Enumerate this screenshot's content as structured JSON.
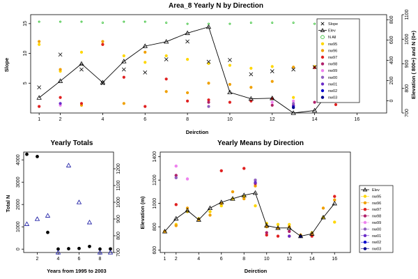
{
  "chart_data": [
    {
      "id": "top",
      "type": "scatter",
      "title": "Area_8 Yearly N by Direction",
      "xlabel": "Deirction",
      "ylabel": "Slope",
      "ylabel_right": "Elevation ( 800+) and N (0+)",
      "xlim": [
        0.6,
        17.4
      ],
      "ylim": [
        0,
        16.5
      ],
      "x_ticks": [
        1,
        2,
        4,
        6,
        8,
        10,
        12,
        14,
        16
      ],
      "y_ticks": [
        5,
        10,
        15
      ],
      "right_axis_elev": {
        "ticks": [
          700,
          800,
          900,
          1000,
          1100
        ],
        "range": [
          700,
          1100
        ]
      },
      "right_axis_n": {
        "ticks": [
          0,
          200,
          400,
          600,
          800
        ],
        "range": [
          -120,
          850
        ]
      },
      "legend_position": "top-right",
      "legend": [
        "Slope",
        "Elev",
        "N All",
        "nw95",
        "nw96",
        "nw97",
        "nw98",
        "nw99",
        "nw00",
        "nw01",
        "nw02",
        "nw03"
      ],
      "slope": {
        "x": [
          1,
          2,
          3,
          4,
          5,
          6,
          7,
          8,
          9,
          10,
          11,
          12,
          13,
          14,
          15,
          16
        ],
        "y": [
          4.3,
          9.8,
          7.3,
          5.0,
          7.3,
          6.8,
          9.0,
          12.0,
          8.6,
          8.9,
          6.5,
          7.0,
          7.3,
          7.7,
          11.0,
          8.3
        ]
      },
      "elev": {
        "x": [
          1,
          2,
          3,
          4,
          5,
          6,
          7,
          8,
          9,
          10,
          11,
          12,
          13,
          14,
          15,
          16
        ],
        "y": [
          762,
          830,
          900,
          824,
          910,
          972,
          990,
          1025,
          1050,
          784,
          758,
          760,
          700,
          710,
          822,
          933
        ]
      },
      "n_all": {
        "x": [
          1,
          2,
          3,
          4,
          5,
          6,
          7,
          8,
          9,
          10,
          11,
          12,
          13,
          14,
          15,
          16
        ],
        "y": [
          780,
          780,
          780,
          770,
          780,
          780,
          770,
          760,
          760,
          760,
          770,
          770,
          770,
          760,
          780,
          770
        ]
      },
      "yearly_points": [
        {
          "name": "nw95",
          "color": "#ffd700",
          "x": [
            1,
            2,
            3,
            4,
            5,
            6,
            7,
            8,
            9,
            10,
            11,
            12,
            13,
            14,
            15,
            16
          ],
          "y": [
            11.5,
            7.0,
            10.2,
            11.5,
            9.6,
            8.5,
            9.6,
            9.0,
            8.3,
            8.0,
            7.5,
            7.8,
            2.6,
            7.8,
            5.4,
            5.7
          ]
        },
        {
          "name": "nw96",
          "color": "#f0a000",
          "x": [
            1,
            2,
            3,
            4,
            5,
            6,
            7,
            8,
            9,
            10,
            11,
            12,
            13,
            14,
            15,
            16
          ],
          "y": [
            12.0,
            7.3,
            1.3,
            12.0,
            1.6,
            10.2,
            3.6,
            3.4,
            5.0,
            4.8,
            4.3,
            5.3,
            7.7,
            7.7,
            7.5,
            6.3
          ]
        },
        {
          "name": "nw97",
          "color": "#e02020",
          "x": [
            1,
            2,
            3,
            4,
            5,
            6,
            7,
            8,
            9,
            10,
            11,
            12,
            13,
            14,
            15,
            16
          ],
          "y": [
            1.1,
            2.6,
            1.6,
            11.5,
            6.0,
            1.1,
            5.7,
            2.0,
            2.2,
            1.8,
            2.0,
            2.4,
            1.3,
            7.6,
            1.4,
            4.0
          ]
        },
        {
          "name": "nw98",
          "color": "#b0206a",
          "x": [
            9,
            12,
            14
          ],
          "y": [
            1.8,
            1.3,
            1.8
          ]
        },
        {
          "name": "nw99",
          "color": "#ee82ee",
          "x": [
            2,
            12,
            13
          ],
          "y": [
            1.3,
            1.8,
            2.0
          ]
        },
        {
          "name": "nw00",
          "color": "#9060c0",
          "x": [
            9,
            13
          ],
          "y": [
            1.1,
            1.6
          ]
        },
        {
          "name": "nw01",
          "color": "#6a2cc8",
          "x": [
            2,
            13
          ],
          "y": [
            1.6,
            1.2
          ]
        },
        {
          "name": "nw02",
          "color": "#0000cd",
          "x": [
            13
          ],
          "y": [
            1.0
          ]
        },
        {
          "name": "nw03",
          "color": "#00008b",
          "x": [
            13
          ],
          "y": [
            0.9
          ]
        }
      ]
    },
    {
      "id": "bottom-left",
      "type": "scatter",
      "title": "Yearly Totals",
      "xlabel": "Years from 1995 to 2003",
      "ylabel": "Total N",
      "xlim": [
        0.7,
        9.3
      ],
      "ylim_left": [
        -150,
        4350
      ],
      "ylim_right": [
        700,
        1300
      ],
      "x_ticks": [
        2,
        4,
        6,
        8
      ],
      "y_ticks": [
        0,
        1000,
        2000,
        3000,
        4000
      ],
      "y_ticks_right": [
        700,
        800,
        900,
        1000,
        1100,
        1200
      ],
      "totals": {
        "x": [
          1,
          2,
          3,
          4,
          5,
          6,
          7,
          8,
          9
        ],
        "y": [
          4250,
          4150,
          750,
          5,
          20,
          30,
          120,
          5,
          10
        ]
      },
      "elevation": {
        "x": [
          1,
          2,
          3,
          4,
          5,
          6,
          7,
          8,
          9
        ],
        "y": [
          870,
          900,
          920,
          700,
          1220,
          1000,
          880,
          700,
          700
        ]
      }
    },
    {
      "id": "bottom-right",
      "type": "scatter",
      "title": "Yearly Means by Direction",
      "xlabel": "Deirction",
      "ylabel": "Elevation (m)",
      "xlim": [
        0.6,
        17.4
      ],
      "ylim": [
        580,
        1440
      ],
      "x_ticks": [
        1,
        2,
        4,
        6,
        8,
        10,
        12,
        14,
        16
      ],
      "y_ticks": [
        600,
        800,
        1000,
        1200,
        1400
      ],
      "legend_position": "bottom-right",
      "legend": [
        "Elev",
        "nw95",
        "nw96",
        "nw97",
        "nw98",
        "nw99",
        "nw00",
        "nw01",
        "nw02",
        "nw03"
      ],
      "elev": {
        "x": [
          1,
          2,
          3,
          4,
          5,
          6,
          7,
          8,
          9,
          10,
          11,
          12,
          13,
          14,
          15,
          16
        ],
        "y": [
          760,
          870,
          940,
          860,
          960,
          1010,
          1040,
          1070,
          1090,
          810,
          790,
          790,
          720,
          740,
          880,
          1000
        ]
      },
      "yearly_points": [
        {
          "name": "nw95",
          "color": "#ffd700",
          "x": [
            1,
            2,
            3,
            4,
            5,
            6,
            7,
            8,
            9,
            10,
            11,
            12,
            13,
            14,
            15,
            16
          ],
          "y": [
            760,
            820,
            930,
            870,
            930,
            980,
            1040,
            1060,
            980,
            830,
            820,
            820,
            720,
            750,
            880,
            840
          ]
        },
        {
          "name": "nw96",
          "color": "#f0a000",
          "x": [
            1,
            2,
            3,
            4,
            5,
            6,
            7,
            8,
            9,
            10,
            11,
            12,
            13,
            14,
            15,
            16
          ],
          "y": [
            760,
            810,
            960,
            860,
            900,
            1000,
            1100,
            1040,
            1150,
            800,
            790,
            800,
            730,
            740,
            960,
            1030
          ]
        },
        {
          "name": "nw97",
          "color": "#e02020",
          "x": [
            2,
            6,
            8,
            10,
            11,
            12,
            14,
            16
          ],
          "y": [
            990,
            1280,
            1300,
            730,
            720,
            720,
            720,
            1060
          ]
        },
        {
          "name": "nw98",
          "color": "#b0206a",
          "x": [
            2,
            9,
            10,
            12
          ],
          "y": [
            1240,
            1170,
            750,
            760
          ]
        },
        {
          "name": "nw99",
          "color": "#ee82ee",
          "x": [
            2,
            3
          ],
          "y": [
            1320,
            1210
          ]
        },
        {
          "name": "nw00",
          "color": "#9060c0",
          "x": [
            2,
            9
          ],
          "y": [
            1220,
            1200
          ]
        },
        {
          "name": "nw01",
          "color": "#6a2cc8",
          "x": [
            9,
            12
          ],
          "y": [
            1180,
            720
          ]
        },
        {
          "name": "nw02",
          "color": "#0000cd",
          "x": [
            13
          ],
          "y": [
            720
          ]
        },
        {
          "name": "nw03",
          "color": "#00008b",
          "x": [
            13
          ],
          "y": [
            720
          ]
        }
      ]
    }
  ]
}
